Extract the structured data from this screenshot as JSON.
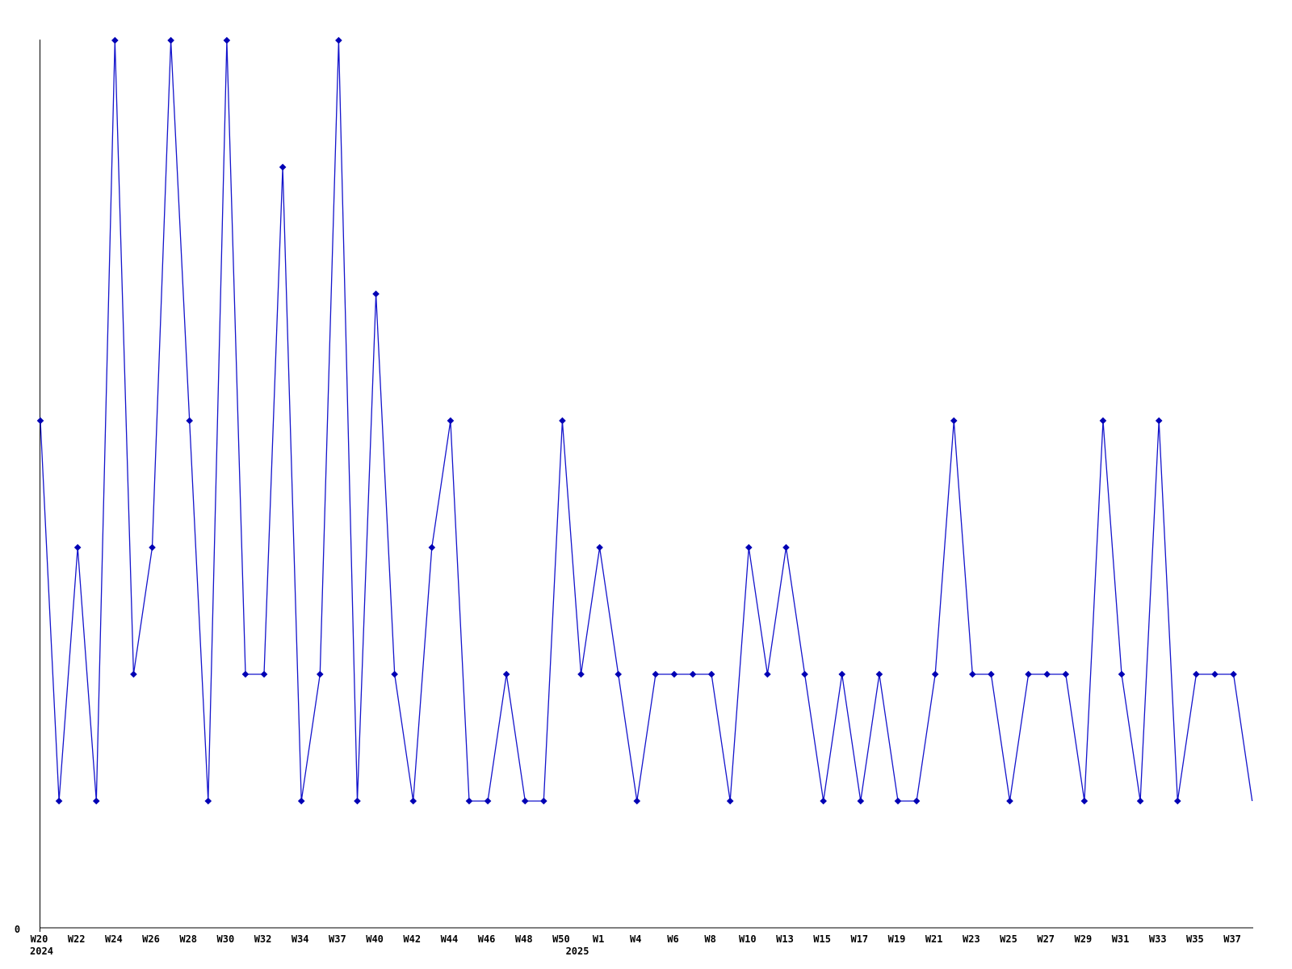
{
  "page": {
    "background_color": "#ffffff",
    "title": ""
  },
  "chart_data": {
    "type": "line",
    "title": "",
    "subtitle": "",
    "xlabel": "",
    "ylabel": "",
    "grid": false,
    "legend": null,
    "marker": "diamond",
    "marker_on_last_point": false,
    "colors": {
      "line": "#1414cc",
      "marker": "#0000b4",
      "axis": "#000000",
      "text": "#000000",
      "background": "#ffffff"
    },
    "y_axis": {
      "origin_label": "0",
      "ylim": [
        0,
        7
      ],
      "tick_labels_shown": [
        "0"
      ]
    },
    "x_axis": {
      "tick_labels": [
        {
          "label": "W20",
          "index": 0
        },
        {
          "label": "W22",
          "index": 2
        },
        {
          "label": "W24",
          "index": 4
        },
        {
          "label": "W26",
          "index": 6
        },
        {
          "label": "W28",
          "index": 8
        },
        {
          "label": "W30",
          "index": 10
        },
        {
          "label": "W32",
          "index": 12
        },
        {
          "label": "W34",
          "index": 14
        },
        {
          "label": "W37",
          "index": 16
        },
        {
          "label": "W40",
          "index": 18
        },
        {
          "label": "W42",
          "index": 20
        },
        {
          "label": "W44",
          "index": 22
        },
        {
          "label": "W46",
          "index": 24
        },
        {
          "label": "W48",
          "index": 26
        },
        {
          "label": "W50",
          "index": 28
        },
        {
          "label": "W1",
          "index": 30
        },
        {
          "label": "W4",
          "index": 32
        },
        {
          "label": "W6",
          "index": 34
        },
        {
          "label": "W8",
          "index": 36
        },
        {
          "label": "W10",
          "index": 38
        },
        {
          "label": "W13",
          "index": 40
        },
        {
          "label": "W15",
          "index": 42
        },
        {
          "label": "W17",
          "index": 44
        },
        {
          "label": "W19",
          "index": 46
        },
        {
          "label": "W21",
          "index": 48
        },
        {
          "label": "W23",
          "index": 50
        },
        {
          "label": "W25",
          "index": 52
        },
        {
          "label": "W27",
          "index": 54
        },
        {
          "label": "W29",
          "index": 56
        },
        {
          "label": "W31",
          "index": 58
        },
        {
          "label": "W33",
          "index": 60
        },
        {
          "label": "W35",
          "index": 62
        },
        {
          "label": "W37",
          "index": 64
        }
      ],
      "year_labels": [
        {
          "label": "2024",
          "index": 0
        },
        {
          "label": "2025",
          "index": 29
        }
      ]
    },
    "values": [
      4,
      1,
      3,
      1,
      7,
      2,
      3,
      7,
      4,
      1,
      7,
      2,
      2,
      6,
      1,
      2,
      7,
      1,
      5,
      2,
      1,
      3,
      4,
      1,
      1,
      2,
      1,
      1,
      4,
      2,
      3,
      2,
      1,
      2,
      2,
      2,
      2,
      1,
      3,
      2,
      3,
      2,
      1,
      2,
      1,
      2,
      1,
      1,
      2,
      4,
      2,
      2,
      1,
      2,
      2,
      2,
      1,
      4,
      2,
      1,
      4,
      1,
      2,
      2,
      2,
      1
    ]
  }
}
